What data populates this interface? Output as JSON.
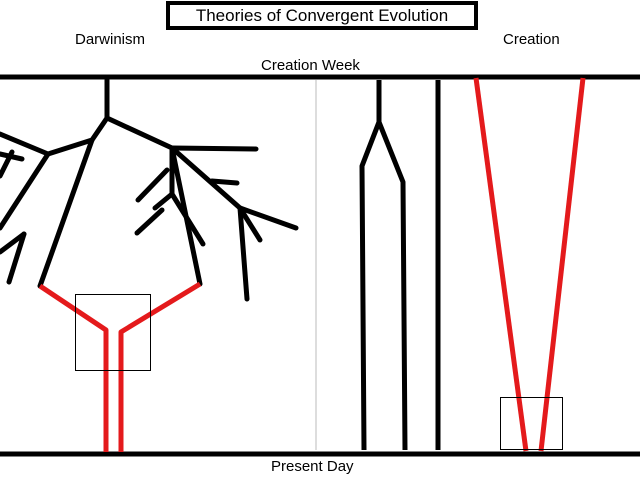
{
  "title": "Theories of Convergent Evolution",
  "left_column_label": "Darwinism",
  "right_column_label": "Creation",
  "top_line_label": "Creation Week",
  "bottom_line_label": "Present Day",
  "colors": {
    "lineage": "#000000",
    "convergent_lineage": "#e41a1c",
    "divider": "#bbbbbb"
  }
}
